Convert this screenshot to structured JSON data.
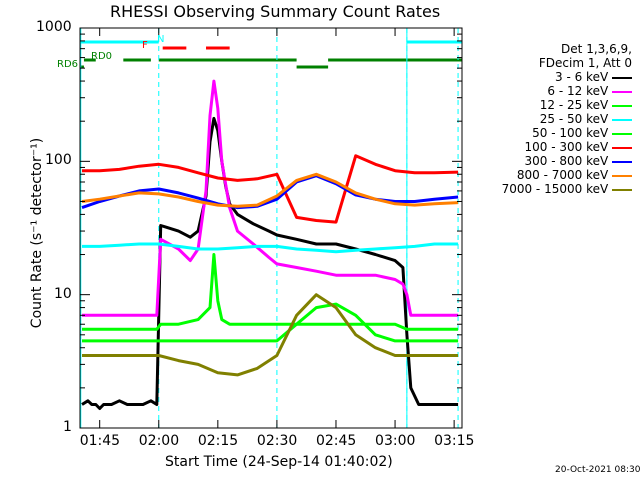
{
  "chart_data": {
    "type": "line",
    "title": "RHESSI Observing Summary Count Rates",
    "xlabel": "Start Time (24-Sep-14 01:40:02)",
    "ylabel": "Count Rate (s⁻¹ detector⁻¹)",
    "yscale": "log",
    "ylim": [
      1,
      1000
    ],
    "xlim_minutes": [
      0,
      97
    ],
    "x_ticks": [
      "01:45",
      "02:00",
      "02:15",
      "02:30",
      "02:45",
      "03:00",
      "03:15"
    ],
    "x_tick_minutes": [
      5,
      20,
      35,
      50,
      65,
      80,
      95
    ],
    "y_ticks": [
      "1",
      "10",
      "100",
      "1000"
    ],
    "y_tick_values": [
      1,
      10,
      100,
      1000
    ],
    "legend_header": [
      "Det 1,3,6,9,",
      "FDecim 1, Att 0"
    ],
    "legend_position": "right",
    "timestamp": "20-Oct-2021 08:30",
    "flags": [
      {
        "label": "N",
        "color": "#00ffff",
        "segments": [
          [
            0,
            20
          ],
          [
            83,
            97
          ]
        ]
      },
      {
        "label": "F",
        "color": "#ff0000",
        "segments": [
          [
            21,
            27
          ],
          [
            32,
            38
          ]
        ]
      },
      {
        "label": "RD0",
        "color": "#008000",
        "segments": [
          [
            1,
            4
          ],
          [
            11,
            18
          ],
          [
            20,
            55
          ],
          [
            63,
            97
          ]
        ]
      },
      {
        "label": "RD6",
        "color": "#008000",
        "segments": [
          [
            0,
            1
          ],
          [
            55,
            63
          ]
        ]
      }
    ],
    "dashed_markers_minutes": [
      20,
      50,
      83,
      96
    ],
    "solid_markers_minutes": [
      0.2,
      83
    ],
    "series": [
      {
        "name": "3 - 6 keV",
        "color": "#000000",
        "x": [
          0.5,
          2,
          3,
          4,
          5,
          6,
          8,
          10,
          12,
          14,
          16,
          18,
          19.5,
          20.5,
          22,
          25,
          28,
          30,
          32,
          33,
          34,
          35,
          36,
          37,
          38,
          40,
          44,
          48,
          50,
          55,
          60,
          65,
          70,
          75,
          80,
          82,
          83,
          84,
          86,
          90,
          95,
          96
        ],
        "y": [
          1.5,
          1.6,
          1.5,
          1.5,
          1.4,
          1.5,
          1.5,
          1.6,
          1.5,
          1.5,
          1.5,
          1.6,
          1.5,
          33,
          32,
          30,
          27,
          30,
          55,
          140,
          210,
          170,
          100,
          65,
          48,
          40,
          34,
          30,
          28,
          26,
          24,
          24,
          22,
          20,
          18,
          16,
          5,
          2,
          1.5,
          1.5,
          1.5,
          1.5
        ]
      },
      {
        "name": "6 - 12 keV",
        "color": "#ff00ff",
        "x": [
          0.5,
          5,
          10,
          15,
          19.5,
          20.5,
          25,
          28,
          30,
          32,
          33,
          34,
          35,
          36,
          38,
          40,
          44,
          48,
          50,
          55,
          60,
          65,
          70,
          75,
          80,
          82,
          83,
          84,
          88,
          92,
          96
        ],
        "y": [
          7,
          7,
          7,
          7,
          7,
          26,
          22,
          18,
          22,
          60,
          220,
          400,
          250,
          100,
          45,
          30,
          24,
          19,
          17,
          16,
          15,
          14,
          14,
          14,
          13,
          12,
          10,
          7,
          7,
          7,
          7
        ]
      },
      {
        "name": "12 - 25 keV",
        "color": "#00ff00",
        "x": [
          0.5,
          5,
          10,
          15,
          19.5,
          20.5,
          25,
          30,
          33,
          34,
          35,
          36,
          38,
          40,
          45,
          50,
          55,
          60,
          65,
          70,
          75,
          80,
          83,
          85,
          90,
          96
        ],
        "y": [
          5.5,
          5.5,
          5.5,
          5.5,
          5.5,
          6,
          6,
          6.5,
          8,
          20,
          9,
          6.5,
          6,
          6,
          6,
          6,
          6,
          6,
          6,
          6,
          6,
          6,
          5.5,
          5.5,
          5.5,
          5.5
        ]
      },
      {
        "name": "25 - 50 keV",
        "color": "#00ffff",
        "x": [
          0.5,
          5,
          10,
          15,
          20,
          25,
          30,
          35,
          40,
          45,
          50,
          55,
          60,
          65,
          70,
          75,
          80,
          85,
          90,
          96
        ],
        "y": [
          23,
          23,
          23.5,
          24,
          24,
          23,
          22,
          22,
          22.5,
          23,
          23,
          22,
          21.5,
          21,
          21.5,
          22,
          22.5,
          23,
          24,
          24
        ]
      },
      {
        "name": "50 - 100 keV",
        "color": "#00ff00",
        "x": [
          0.5,
          5,
          10,
          15,
          20,
          25,
          30,
          35,
          40,
          45,
          50,
          55,
          60,
          65,
          70,
          75,
          80,
          85,
          90,
          96
        ],
        "y": [
          4.5,
          4.5,
          4.5,
          4.5,
          4.5,
          4.5,
          4.5,
          4.5,
          4.5,
          4.5,
          4.5,
          6,
          8,
          8.5,
          7,
          5,
          4.5,
          4.5,
          4.5,
          4.5
        ]
      },
      {
        "name": "100 - 300 keV",
        "color": "#ff0000",
        "x": [
          0.5,
          5,
          10,
          15,
          20,
          25,
          30,
          35,
          40,
          45,
          50,
          55,
          60,
          65,
          70,
          75,
          80,
          85,
          90,
          96
        ],
        "y": [
          85,
          85,
          87,
          92,
          95,
          90,
          82,
          75,
          72,
          74,
          80,
          38,
          36,
          35,
          110,
          95,
          85,
          82,
          82,
          83
        ]
      },
      {
        "name": "300 - 800 keV",
        "color": "#0000ff",
        "x": [
          0.5,
          5,
          10,
          15,
          20,
          25,
          30,
          35,
          40,
          45,
          50,
          55,
          60,
          65,
          70,
          75,
          80,
          85,
          90,
          96
        ],
        "y": [
          45,
          50,
          55,
          60,
          62,
          58,
          53,
          48,
          45,
          46,
          52,
          70,
          78,
          68,
          56,
          52,
          50,
          50,
          52,
          54
        ]
      },
      {
        "name": "800 - 7000 keV",
        "color": "#ff8000",
        "x": [
          0.5,
          5,
          10,
          15,
          20,
          25,
          30,
          35,
          40,
          45,
          50,
          55,
          60,
          65,
          70,
          75,
          80,
          85,
          90,
          96
        ],
        "y": [
          50,
          52,
          55,
          58,
          57,
          54,
          50,
          47,
          46,
          47,
          55,
          72,
          80,
          70,
          58,
          52,
          48,
          47,
          48,
          49
        ]
      },
      {
        "name": "7000 - 15000 keV",
        "color": "#808000",
        "x": [
          0.5,
          5,
          10,
          15,
          20,
          25,
          30,
          35,
          40,
          45,
          50,
          55,
          60,
          65,
          70,
          75,
          80,
          85,
          90,
          96
        ],
        "y": [
          3.5,
          3.5,
          3.5,
          3.5,
          3.5,
          3.2,
          3,
          2.6,
          2.5,
          2.8,
          3.5,
          7,
          10,
          8,
          5,
          4,
          3.5,
          3.5,
          3.5,
          3.5
        ]
      }
    ]
  }
}
